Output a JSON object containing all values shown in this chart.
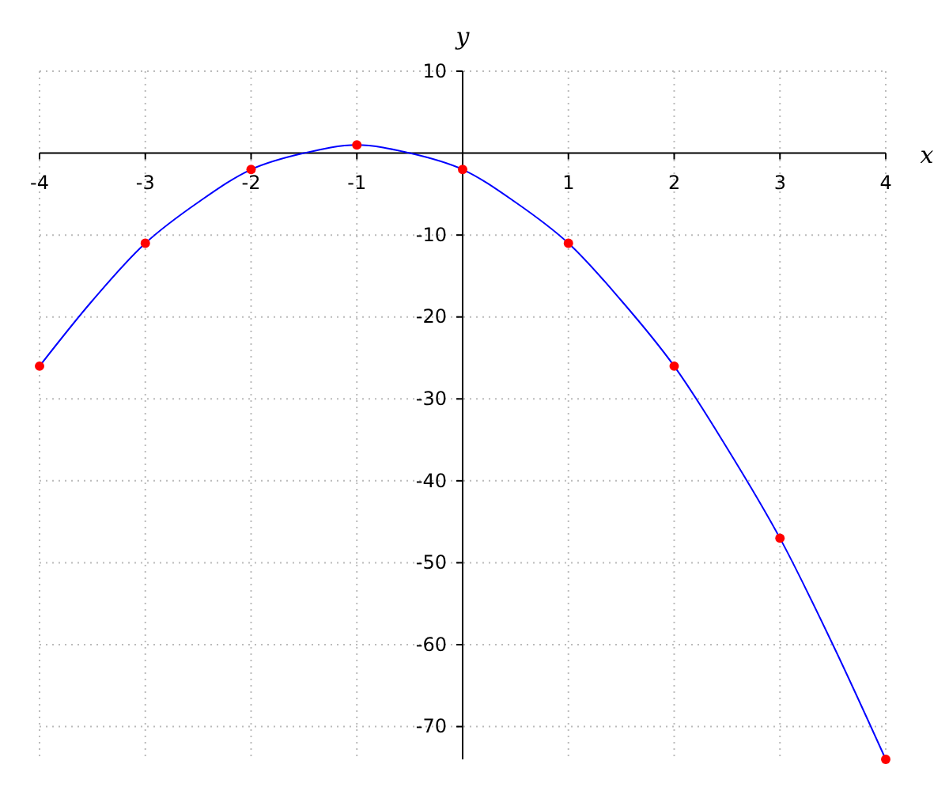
{
  "chart_data": {
    "type": "scatter",
    "xlabel": "x",
    "ylabel": "y",
    "xlim": [
      -4,
      4
    ],
    "ylim": [
      -74,
      10
    ],
    "xticks": [
      -4,
      -3,
      -2,
      -1,
      1,
      2,
      3,
      4
    ],
    "yticks": [
      10,
      -10,
      -20,
      -30,
      -40,
      -50,
      -60,
      -70
    ],
    "grid": true,
    "marker": "circle",
    "series": [
      {
        "type": "line",
        "color": "#0000ff",
        "marker": "none",
        "x": [
          -4,
          -3.5,
          -3,
          -2.5,
          -2,
          -1.5,
          -1,
          -0.5,
          0,
          0.5,
          1,
          1.5,
          2,
          2.5,
          3,
          3.5,
          4
        ],
        "values": [
          -26,
          -18,
          -11,
          -6,
          -2,
          0,
          1,
          0,
          -2,
          -6,
          -11,
          -18,
          -26,
          -36,
          -47,
          -60,
          -74
        ]
      },
      {
        "color": "#ff0000",
        "x": [
          -4,
          -3,
          -2,
          -1,
          0,
          1,
          2,
          3,
          4
        ],
        "values": [
          -26,
          -11,
          -2,
          1,
          -2,
          -11,
          -26,
          -47,
          -74
        ]
      }
    ]
  }
}
